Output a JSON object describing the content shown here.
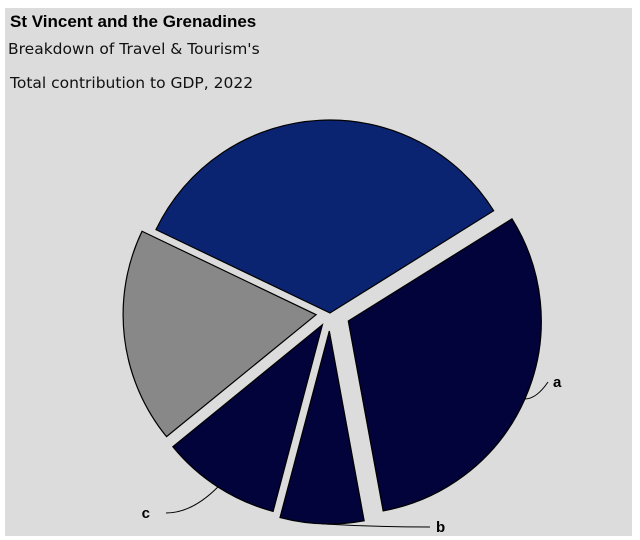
{
  "header": {
    "title": "St Vincent and the Grenadines",
    "subtitle_line1": "Breakdown of Travel & Tourism's",
    "subtitle_line2": "Total contribution to GDP, 2022"
  },
  "chart_data": {
    "type": "pie",
    "title": "St Vincent and the Grenadines",
    "subtitle": "Breakdown of Travel & Tourism's Total contribution to GDP, 2022",
    "exploded": true,
    "start_angle_deg_clockwise_from_north": 58,
    "slices": [
      {
        "label": "a",
        "value": 31,
        "color": "#02033a",
        "explode": 20
      },
      {
        "label": "b",
        "value": 7,
        "color": "#02033a",
        "explode": 18
      },
      {
        "label": "c",
        "value": 10,
        "color": "#02033a",
        "explode": 14
      },
      {
        "label": "",
        "value": 18,
        "color": "#888888",
        "explode": 14
      },
      {
        "label": "",
        "value": 34,
        "color": "#0b2472",
        "explode": 0
      }
    ]
  }
}
